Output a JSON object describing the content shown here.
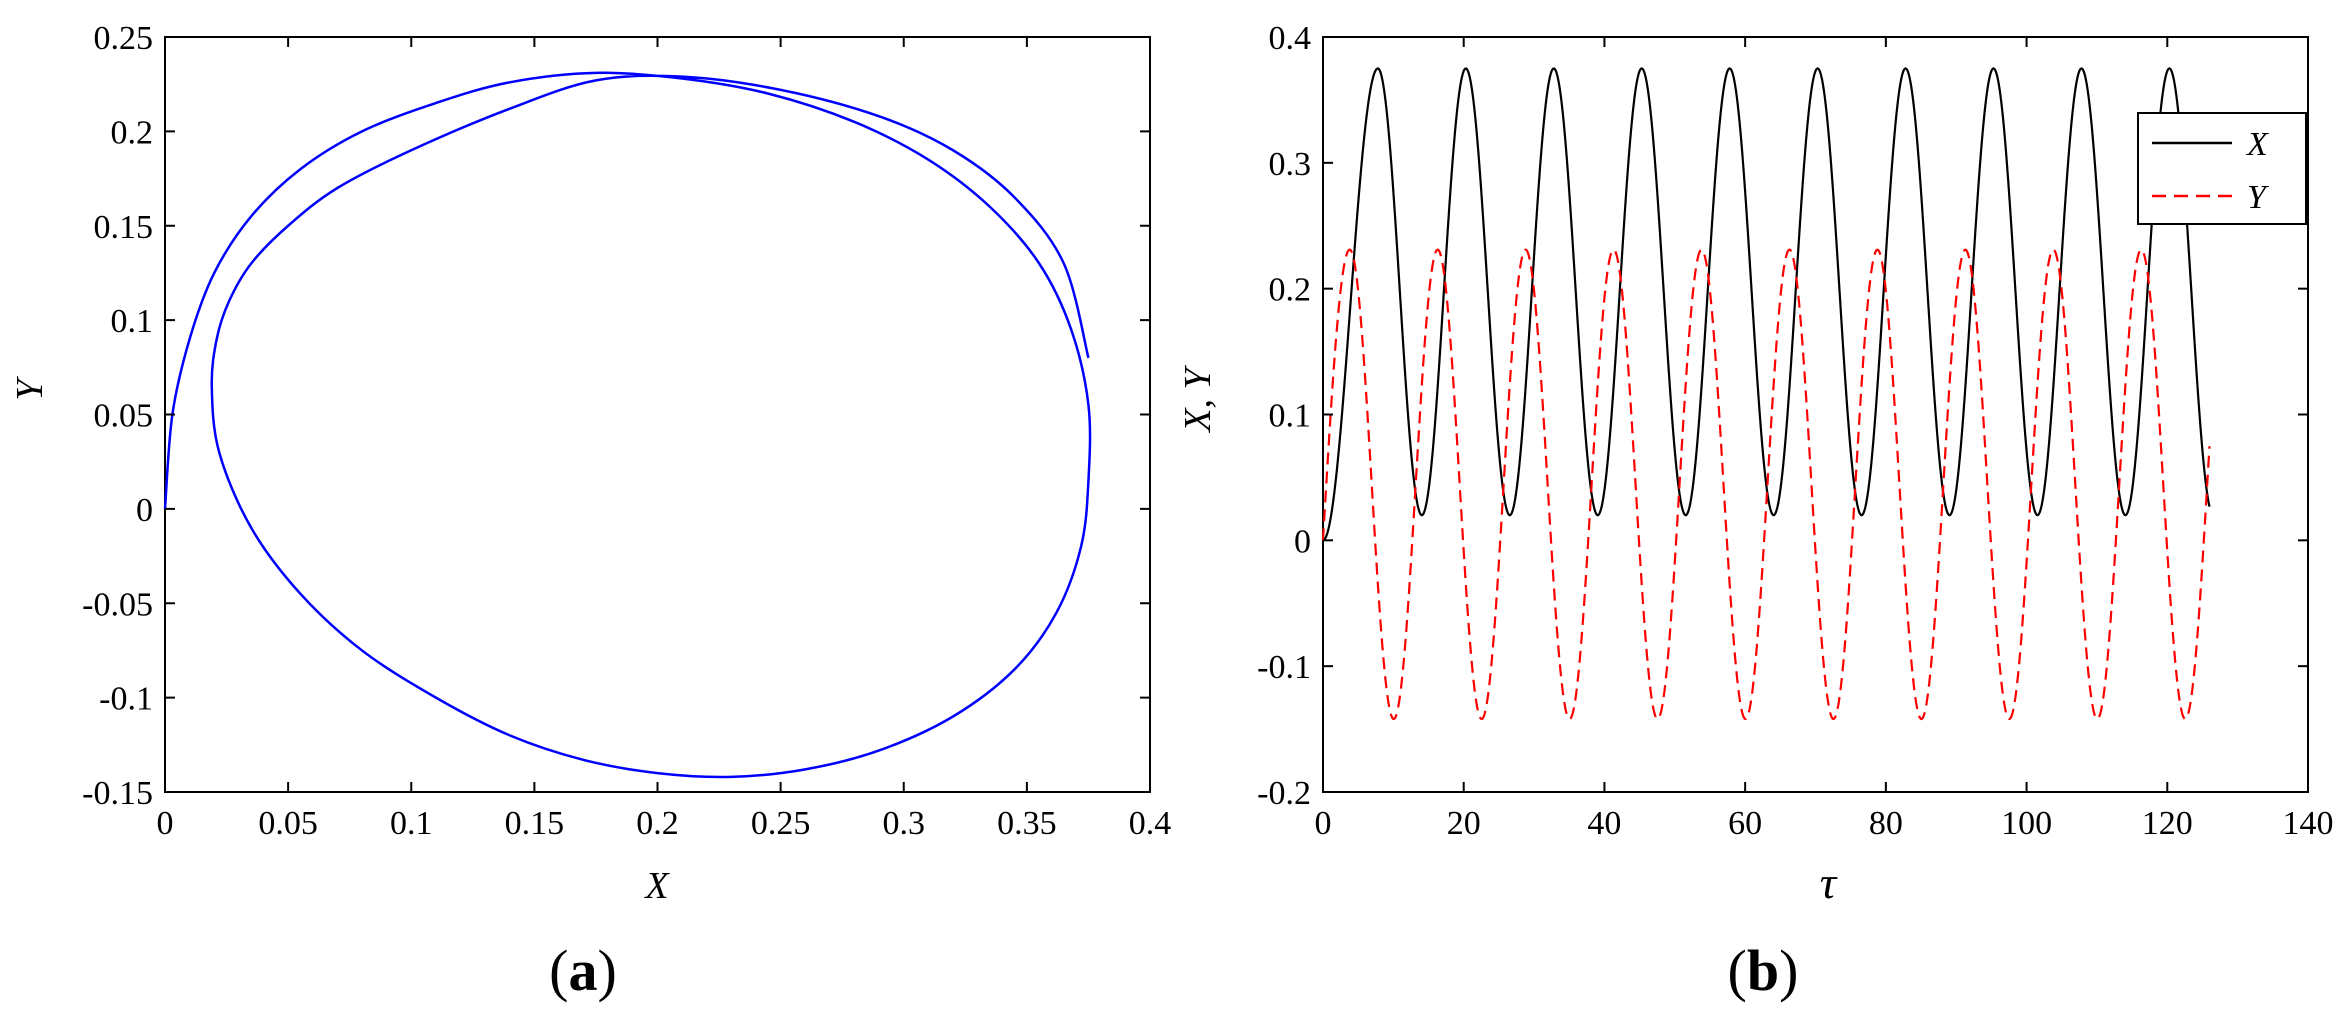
{
  "chart_data": [
    {
      "panel": "(a)",
      "panel_letter": "a",
      "type": "line",
      "xlabel": "X",
      "ylabel": "Y",
      "xlim": [
        0,
        0.4
      ],
      "ylim": [
        -0.15,
        0.25
      ],
      "xticks": [
        0,
        0.05,
        0.1,
        0.15,
        0.2,
        0.25,
        0.3,
        0.35,
        0.4
      ],
      "xtick_labels": [
        "0",
        "0.05",
        "0.1",
        "0.15",
        "0.2",
        "0.25",
        "0.3",
        "0.35",
        "0.4"
      ],
      "yticks": [
        -0.15,
        -0.1,
        -0.05,
        0,
        0.05,
        0.1,
        0.15,
        0.2,
        0.25
      ],
      "ytick_labels": [
        "-0.15",
        "-0.1",
        "-0.05",
        "0",
        "0.05",
        "0.1",
        "0.15",
        "0.2",
        "0.25"
      ],
      "grid": false,
      "series": [
        {
          "color": "#0000ff",
          "style": "solid",
          "x": [
            0,
            0.003,
            0.01,
            0.02,
            0.035,
            0.055,
            0.08,
            0.11,
            0.14,
            0.175,
            0.21,
            0.245,
            0.28,
            0.31,
            0.335,
            0.355,
            0.368,
            0.375,
            0.375,
            0.372,
            0.362,
            0.345,
            0.32,
            0.29,
            0.26,
            0.23,
            0.2,
            0.17,
            0.14,
            0.11,
            0.08,
            0.055,
            0.035,
            0.022,
            0.019,
            0.021,
            0.026,
            0.035,
            0.05,
            0.07,
            0.1,
            0.14,
            0.175,
            0.21,
            0.25,
            0.29,
            0.32,
            0.345,
            0.365,
            0.375
          ],
          "y": [
            0,
            0.05,
            0.09,
            0.125,
            0.155,
            0.18,
            0.2,
            0.215,
            0.226,
            0.231,
            0.228,
            0.22,
            0.205,
            0.185,
            0.16,
            0.13,
            0.095,
            0.055,
            0.015,
            -0.02,
            -0.055,
            -0.085,
            -0.11,
            -0.128,
            -0.138,
            -0.142,
            -0.14,
            -0.133,
            -0.12,
            -0.1,
            -0.075,
            -0.045,
            -0.01,
            0.03,
            0.065,
            0.09,
            0.11,
            0.13,
            0.15,
            0.17,
            0.19,
            0.212,
            0.227,
            0.229,
            0.222,
            0.208,
            0.19,
            0.165,
            0.13,
            0.08
          ]
        }
      ]
    },
    {
      "panel": "(b)",
      "panel_letter": "b",
      "type": "line",
      "xlabel": "τ",
      "ylabel": "X, Y",
      "xlim": [
        0,
        140
      ],
      "ylim": [
        -0.2,
        0.4
      ],
      "xticks": [
        0,
        20,
        40,
        60,
        80,
        100,
        120,
        140
      ],
      "xtick_labels": [
        "0",
        "20",
        "40",
        "60",
        "80",
        "100",
        "120",
        "140"
      ],
      "yticks": [
        -0.2,
        -0.1,
        0,
        0.1,
        0.2,
        0.3,
        0.4
      ],
      "ytick_labels": [
        "-0.2",
        "-0.1",
        "0",
        "0.1",
        "0.2",
        "0.3",
        "0.4"
      ],
      "grid": false,
      "legend_position": "top-right",
      "period": 12.5,
      "t_end": 126,
      "series": [
        {
          "name": "X",
          "color": "#000000",
          "style": "solid",
          "max": 0.375,
          "min": 0.02,
          "start": 0,
          "first_peak_t": 7.8
        },
        {
          "name": "Y",
          "color": "#ff0000",
          "style": "dashed",
          "max": 0.231,
          "min": -0.142,
          "start": 0,
          "first_peak_t": 3.8,
          "first_trough_t": 10.2
        }
      ]
    }
  ]
}
